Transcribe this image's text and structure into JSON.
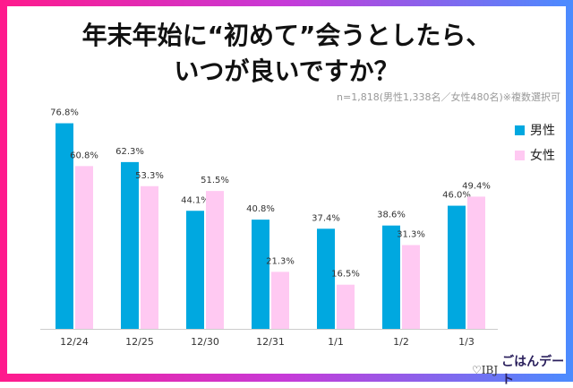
{
  "title_line1": "年末年始に“初めて”会うとしたら、",
  "title_line2": "いつが良いですか？",
  "note": "n=1,818(男性1,338名／女性480名)※複数選択可",
  "logo": {
    "ibj": "♡IBJ",
    "brand": "ごはんデート"
  },
  "chart_data": {
    "type": "bar",
    "categories": [
      "12/24",
      "12/25",
      "12/30",
      "12/31",
      "1/1",
      "1/2",
      "1/3"
    ],
    "series": [
      {
        "name": "男性",
        "color": "#00a8e0",
        "values": [
          76.8,
          62.3,
          44.1,
          40.8,
          37.4,
          38.6,
          46.0
        ]
      },
      {
        "name": "女性",
        "color": "#ffc9f2",
        "values": [
          60.8,
          53.3,
          51.5,
          21.3,
          16.5,
          31.3,
          49.4
        ]
      }
    ],
    "unit": "%",
    "ylim": [
      0,
      80
    ],
    "grid": false,
    "legend": "right"
  }
}
